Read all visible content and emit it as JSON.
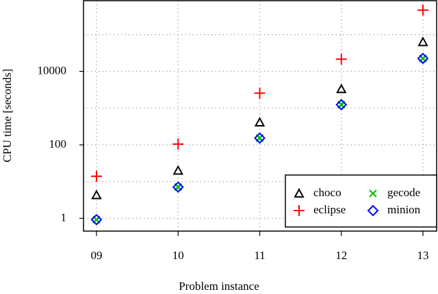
{
  "chart_data": {
    "type": "scatter",
    "x_label": "Problem instance",
    "y_label": "CPU time [seconds]",
    "categories": [
      "09",
      "10",
      "11",
      "12",
      "13"
    ],
    "y_log": true,
    "ylim": [
      0.45,
      840000
    ],
    "yticks": [
      1,
      100,
      10000
    ],
    "minor_yticks": [
      10,
      1000,
      100000
    ],
    "grid": true,
    "legend_position": "lower right",
    "series": [
      {
        "name": "choco",
        "color": "#000000",
        "marker": "triangle",
        "values": [
          4.3,
          20,
          410,
          3300,
          63000
        ]
      },
      {
        "name": "gecode",
        "color": "#00bb00",
        "marker": "x",
        "values": [
          0.92,
          7.1,
          153,
          1240,
          22500
        ]
      },
      {
        "name": "eclipse",
        "color": "#ff0000",
        "marker": "plus",
        "values": [
          14,
          105,
          2550,
          21500,
          466000
        ]
      },
      {
        "name": "minion",
        "color": "#0000ff",
        "marker": "diamond",
        "values": [
          0.92,
          7.1,
          153,
          1240,
          22500
        ]
      }
    ]
  }
}
